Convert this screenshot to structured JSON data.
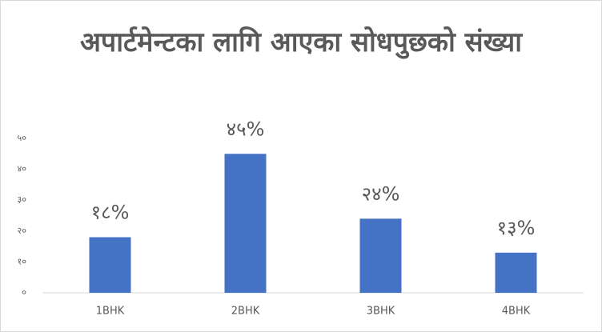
{
  "chart_data": {
    "type": "bar",
    "title": "अपार्टमेन्टका लागि आएका सोधपुछको संख्या",
    "categories": [
      "1BHK",
      "2BHK",
      "3BHK",
      "4BHK"
    ],
    "values": [
      18,
      45,
      24,
      13
    ],
    "value_labels": [
      "१८%",
      "४५%",
      "२४%",
      "१३%"
    ],
    "color": "#4472c4",
    "ylim": [
      0,
      50
    ],
    "yticks": [
      {
        "value": 0,
        "label": "०"
      },
      {
        "value": 10,
        "label": "१०"
      },
      {
        "value": 20,
        "label": "२०"
      },
      {
        "value": 30,
        "label": "३०"
      },
      {
        "value": 40,
        "label": "४०"
      },
      {
        "value": 50,
        "label": "५०"
      }
    ],
    "grid": false
  }
}
